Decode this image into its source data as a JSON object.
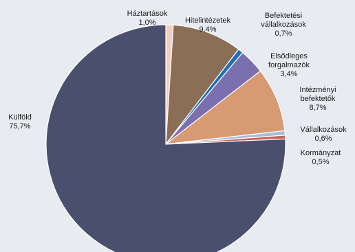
{
  "chart_data": {
    "type": "pie",
    "title": "",
    "start": "12 o'clock",
    "direction": "clockwise",
    "slices": [
      {
        "label": [
          "Háztartások",
          "1,0%"
        ],
        "value": 1.0,
        "color": "#f2d0c0"
      },
      {
        "label": [
          "Hitelintézetek",
          "9,4%"
        ],
        "value": 9.4,
        "color": "#8a6e56"
      },
      {
        "label": [
          "Befektetési",
          "vállalkozások",
          "0,7%"
        ],
        "value": 0.7,
        "color": "#1f6fb5"
      },
      {
        "label": [
          "Elsődleges",
          "forgalmazók",
          "3,4%"
        ],
        "value": 3.4,
        "color": "#7a70b0"
      },
      {
        "label": [
          "Intézményi",
          "befektetők",
          "8,7%"
        ],
        "value": 8.7,
        "color": "#d89a72"
      },
      {
        "label": [
          "Vállalkozások",
          "0,6%"
        ],
        "value": 0.6,
        "color": "#a9bfd6"
      },
      {
        "label": [
          "Kormányzat",
          "0,5%"
        ],
        "value": 0.5,
        "color": "#c8605a"
      },
      {
        "label": [
          "Külföld",
          "75,7%"
        ],
        "value": 75.7,
        "color": "#4b4f6e"
      }
    ]
  }
}
